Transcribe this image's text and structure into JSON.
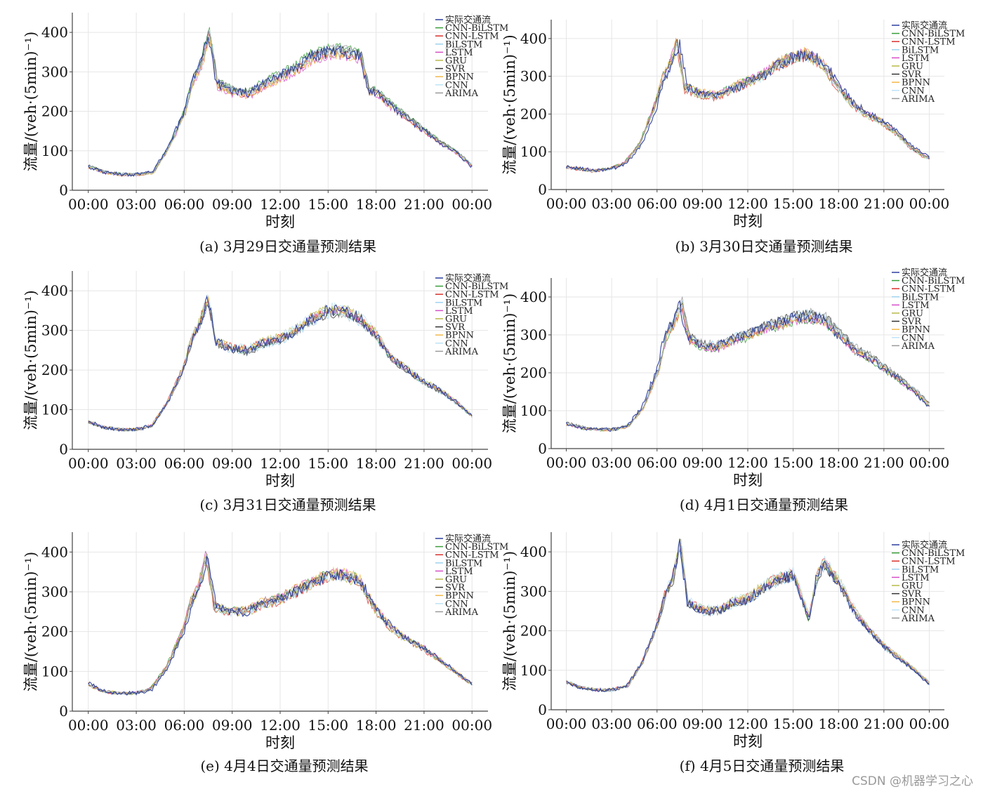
{
  "watermark": "CSDN @机器学习之心",
  "colors": {
    "实际交通流": "#2c3e9e",
    "CNN-BiLSTM": "#3a9e3a",
    "CNN-LSTM": "#d9322e",
    "BiLSTM": "#9fd3f0",
    "LSTM": "#d64fc7",
    "GRU": "#b8b84a",
    "SVR": "#333333",
    "BPNN": "#f2b84b",
    "CNN": "#bfe3f5",
    "ARIMA": "#9a9a9a"
  },
  "chart_data": [
    {
      "type": "line",
      "caption": "(a) 3月29日交通量预测结果",
      "xlabel": "时刻",
      "ylabel": "流量/(veh·(5min)⁻¹)",
      "x_ticks": [
        "00:00",
        "03:00",
        "06:00",
        "09:00",
        "12:00",
        "15:00",
        "18:00",
        "21:00",
        "00:00"
      ],
      "y_ticks": [
        0,
        100,
        200,
        300,
        400
      ],
      "ylim": [
        0,
        450
      ],
      "xlim_hours": [
        -1,
        25
      ],
      "grid": true,
      "legend_position": "top-right",
      "series_names": [
        "实际交通流",
        "CNN-BiLSTM",
        "CNN-LSTM",
        "BiLSTM",
        "LSTM",
        "GRU",
        "SVR",
        "BPNN",
        "CNN",
        "ARIMA"
      ],
      "x_hours": [
        0,
        1,
        2,
        3,
        4,
        5,
        6,
        6.5,
        7,
        7.5,
        8,
        9,
        10,
        11,
        12,
        13,
        14,
        15,
        16,
        17,
        17.5,
        18,
        19,
        20,
        21,
        22,
        23,
        24
      ],
      "actual": [
        60,
        45,
        40,
        40,
        45,
        110,
        200,
        280,
        320,
        400,
        270,
        250,
        245,
        270,
        290,
        310,
        340,
        350,
        350,
        340,
        250,
        250,
        210,
        180,
        150,
        120,
        95,
        60
      ]
    },
    {
      "type": "line",
      "caption": "(b) 3月30日交通量预测结果",
      "xlabel": "时刻",
      "ylabel": "流量/(veh·(5min)⁻¹)",
      "x_ticks": [
        "00:00",
        "03:00",
        "06:00",
        "09:00",
        "12:00",
        "15:00",
        "18:00",
        "21:00",
        "00:00"
      ],
      "y_ticks": [
        0,
        100,
        200,
        300,
        400
      ],
      "ylim": [
        0,
        450
      ],
      "xlim_hours": [
        -1,
        25
      ],
      "grid": true,
      "legend_position": "top-right",
      "series_names": [
        "实际交通流",
        "CNN-BiLSTM",
        "CNN-LSTM",
        "BiLSTM",
        "LSTM",
        "GRU",
        "SVR",
        "BPNN",
        "CNN",
        "ARIMA"
      ],
      "x_hours": [
        0,
        1,
        2,
        3,
        4,
        5,
        6,
        6.5,
        7,
        7.5,
        8,
        9,
        10,
        11,
        12,
        13,
        14,
        15,
        16,
        17,
        18,
        19,
        20,
        21,
        22,
        23,
        24
      ],
      "actual": [
        60,
        55,
        50,
        55,
        70,
        120,
        220,
        290,
        330,
        390,
        270,
        255,
        250,
        265,
        285,
        300,
        330,
        350,
        360,
        340,
        280,
        230,
        200,
        180,
        150,
        110,
        85
      ]
    },
    {
      "type": "line",
      "caption": "(c) 3月31日交通量预测结果",
      "xlabel": "时刻",
      "ylabel": "流量/(veh·(5min)⁻¹)",
      "x_ticks": [
        "00:00",
        "03:00",
        "06:00",
        "09:00",
        "12:00",
        "15:00",
        "18:00",
        "21:00",
        "00:00"
      ],
      "y_ticks": [
        0,
        100,
        200,
        300,
        400
      ],
      "ylim": [
        0,
        450
      ],
      "xlim_hours": [
        -1,
        25
      ],
      "grid": true,
      "legend_position": "top-right",
      "series_names": [
        "实际交通流",
        "CNN-BiLSTM",
        "CNN-LSTM",
        "BiLSTM",
        "LSTM",
        "GRU",
        "SVR",
        "BPNN",
        "CNN",
        "ARIMA"
      ],
      "x_hours": [
        0,
        1,
        2,
        3,
        4,
        5,
        6,
        6.5,
        7,
        7.5,
        8,
        9,
        10,
        11,
        12,
        13,
        14,
        15,
        16,
        17,
        18,
        19,
        20,
        21,
        22,
        23,
        24
      ],
      "actual": [
        70,
        55,
        50,
        50,
        60,
        120,
        210,
        280,
        320,
        380,
        270,
        255,
        250,
        270,
        280,
        300,
        330,
        350,
        350,
        330,
        290,
        230,
        200,
        170,
        150,
        120,
        85
      ]
    },
    {
      "type": "line",
      "caption": "(d) 4月1日交通量预测结果",
      "xlabel": "时刻",
      "ylabel": "流量/(veh·(5min)⁻¹)",
      "x_ticks": [
        "00:00",
        "03:00",
        "06:00",
        "09:00",
        "12:00",
        "15:00",
        "18:00",
        "21:00",
        "00:00"
      ],
      "y_ticks": [
        0,
        100,
        200,
        300,
        400
      ],
      "ylim": [
        0,
        450
      ],
      "xlim_hours": [
        -1,
        25
      ],
      "grid": true,
      "legend_position": "top-right",
      "series_names": [
        "实际交通流",
        "CNN-BiLSTM",
        "CNN-LSTM",
        "BiLSTM",
        "LSTM",
        "GRU",
        "SVR",
        "BPNN",
        "CNN",
        "ARIMA"
      ],
      "x_hours": [
        0,
        1,
        2,
        3,
        4,
        5,
        6,
        6.5,
        7,
        7.5,
        8,
        9,
        10,
        11,
        12,
        13,
        14,
        15,
        16,
        17,
        18,
        19,
        20,
        21,
        22,
        23,
        24
      ],
      "actual": [
        65,
        55,
        50,
        50,
        60,
        110,
        210,
        300,
        330,
        380,
        290,
        270,
        270,
        290,
        300,
        320,
        330,
        345,
        350,
        340,
        300,
        260,
        240,
        210,
        180,
        150,
        110
      ]
    },
    {
      "type": "line",
      "caption": "(e) 4月4日交通量预测结果",
      "xlabel": "时刻",
      "ylabel": "流量/(veh·(5min)⁻¹)",
      "x_ticks": [
        "00:00",
        "03:00",
        "06:00",
        "09:00",
        "12:00",
        "15:00",
        "18:00",
        "21:00",
        "00:00"
      ],
      "y_ticks": [
        0,
        100,
        200,
        300,
        400
      ],
      "ylim": [
        0,
        450
      ],
      "xlim_hours": [
        -1,
        25
      ],
      "grid": true,
      "legend_position": "top-right",
      "series_names": [
        "实际交通流",
        "CNN-BiLSTM",
        "CNN-LSTM",
        "BiLSTM",
        "LSTM",
        "GRU",
        "SVR",
        "BPNN",
        "CNN",
        "ARIMA"
      ],
      "x_hours": [
        0,
        1,
        2,
        3,
        4,
        5,
        6,
        6.5,
        7,
        7.5,
        8,
        9,
        10,
        11,
        12,
        13,
        14,
        15,
        16,
        17,
        18,
        19,
        20,
        21,
        22,
        23,
        24
      ],
      "actual": [
        70,
        50,
        45,
        45,
        55,
        110,
        200,
        270,
        310,
        390,
        260,
        250,
        250,
        270,
        280,
        300,
        320,
        340,
        340,
        330,
        260,
        210,
        180,
        160,
        130,
        100,
        70
      ]
    },
    {
      "type": "line",
      "caption": "(f) 4月5日交通量预测结果",
      "xlabel": "时刻",
      "ylabel": "流量/(veh·(5min)⁻¹)",
      "x_ticks": [
        "00:00",
        "03:00",
        "06:00",
        "09:00",
        "12:00",
        "15:00",
        "18:00",
        "21:00",
        "00:00"
      ],
      "y_ticks": [
        0,
        100,
        200,
        300,
        400
      ],
      "ylim": [
        0,
        450
      ],
      "xlim_hours": [
        -1,
        25
      ],
      "grid": true,
      "legend_position": "top-right",
      "series_names": [
        "实际交通流",
        "CNN-BiLSTM",
        "CNN-LSTM",
        "BiLSTM",
        "LSTM",
        "GRU",
        "SVR",
        "BPNN",
        "CNN",
        "ARIMA"
      ],
      "x_hours": [
        0,
        1,
        2,
        3,
        4,
        5,
        6,
        6.5,
        7,
        7.5,
        8,
        9,
        10,
        11,
        12,
        13,
        14,
        15,
        16,
        16.5,
        17,
        18,
        19,
        20,
        21,
        22,
        23,
        24
      ],
      "actual": [
        70,
        55,
        50,
        50,
        60,
        120,
        220,
        290,
        330,
        420,
        270,
        250,
        250,
        270,
        280,
        310,
        330,
        340,
        230,
        330,
        370,
        320,
        250,
        200,
        160,
        130,
        100,
        65
      ]
    }
  ]
}
